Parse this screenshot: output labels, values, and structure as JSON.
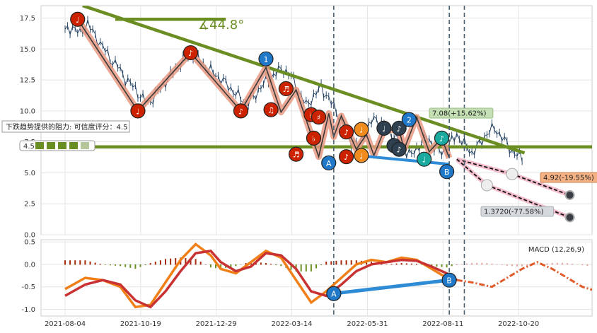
{
  "chart_data": [
    {
      "type": "line",
      "panel": "price",
      "x_labels": [
        "2021-08-04",
        "2021-10-19",
        "2021-12-29",
        "2022-03-14",
        "2022-05-31",
        "2022-08-11",
        "2022-10-20"
      ],
      "yticks": [
        "0.0",
        "2.5",
        "5.0",
        "7.5",
        "10.0",
        "12.5",
        "15.0",
        "17.5"
      ],
      "ylim": [
        0,
        18.5
      ],
      "grid": true,
      "price_series": [
        [
          0,
          16.4
        ],
        [
          3,
          16.8
        ],
        [
          6,
          16.2
        ],
        [
          9,
          17.1
        ],
        [
          12,
          16.0
        ],
        [
          15,
          15.2
        ],
        [
          18,
          14.2
        ],
        [
          21,
          13.6
        ],
        [
          24,
          12.6
        ],
        [
          27,
          12.0
        ],
        [
          30,
          11.2
        ],
        [
          33,
          10.6
        ],
        [
          36,
          11.3
        ],
        [
          39,
          12.1
        ],
        [
          42,
          12.9
        ],
        [
          45,
          13.6
        ],
        [
          48,
          14.3
        ],
        [
          51,
          14.6
        ],
        [
          54,
          14.0
        ],
        [
          57,
          13.4
        ],
        [
          60,
          12.9
        ],
        [
          63,
          12.4
        ],
        [
          66,
          11.8
        ],
        [
          69,
          11.2
        ],
        [
          72,
          10.6
        ],
        [
          75,
          11.0
        ],
        [
          78,
          12.0
        ],
        [
          81,
          12.5
        ],
        [
          84,
          13.1
        ],
        [
          87,
          13.4
        ],
        [
          90,
          12.8
        ],
        [
          93,
          11.6
        ],
        [
          96,
          10.4
        ],
        [
          99,
          11.2
        ],
        [
          102,
          11.9
        ],
        [
          105,
          11.0
        ],
        [
          108,
          10.0
        ],
        [
          111,
          8.8
        ],
        [
          114,
          7.6
        ],
        [
          117,
          7.2
        ],
        [
          120,
          8.4
        ],
        [
          123,
          9.4
        ],
        [
          126,
          9.0
        ],
        [
          129,
          8.4
        ],
        [
          132,
          7.8
        ],
        [
          135,
          6.9
        ],
        [
          138,
          6.4
        ],
        [
          141,
          7.2
        ],
        [
          144,
          7.9
        ],
        [
          147,
          7.1
        ],
        [
          150,
          6.6
        ],
        [
          153,
          7.3
        ],
        [
          156,
          8.1
        ],
        [
          159,
          7.3
        ],
        [
          162,
          6.6
        ],
        [
          165,
          7.3
        ],
        [
          168,
          8.2
        ],
        [
          171,
          8.6
        ],
        [
          174,
          7.9
        ],
        [
          177,
          7.0
        ],
        [
          180,
          6.4
        ],
        [
          183,
          6.1
        ]
      ],
      "trend_lines": [
        {
          "label": "∡44.8°",
          "points": [
            [
              7,
              18.5
            ],
            [
              183,
              6.6
            ]
          ],
          "color": "#6b8e23"
        },
        {
          "points": [
            [
              20,
              17.4
            ],
            [
              64,
              17.4
            ]
          ],
          "color": "#6b8e23"
        },
        {
          "points": [
            [
              -5,
              7.1
            ],
            [
              244,
              7.1
            ]
          ],
          "color": "#6b8e23"
        }
      ],
      "zigzag": [
        [
          5,
          17.4
        ],
        [
          29,
          10.0
        ],
        [
          50,
          14.7
        ],
        [
          70,
          10.0
        ],
        [
          80,
          13.5
        ],
        [
          86,
          9.9
        ],
        [
          92,
          11.7
        ],
        [
          101,
          6.3
        ],
        [
          105,
          9.8
        ],
        [
          107,
          7.9
        ],
        [
          110,
          9.6
        ],
        [
          116,
          6.9
        ],
        [
          120,
          8.1
        ],
        [
          123,
          6.4
        ],
        [
          127,
          8.4
        ],
        [
          133,
          8.5
        ],
        [
          135,
          6.9
        ],
        [
          140,
          9.5
        ],
        [
          145,
          6.7
        ],
        [
          150,
          7.8
        ],
        [
          153,
          6.2
        ]
      ],
      "support_line": [
        [
          116,
          6.4
        ],
        [
          153,
          5.7
        ]
      ],
      "projections": [
        {
          "label": "7.08(+15.62%)",
          "value": 7.08,
          "color": "#c5e0b4"
        },
        {
          "label": "4.92(-19.55%)",
          "value": 4.92,
          "points": [
            [
              156,
              6.1
            ],
            [
              178,
              4.9
            ],
            [
              201,
              3.2
            ]
          ],
          "color": "#f4a460"
        },
        {
          "label": "1.3720(-77.58%)",
          "value": 1.372,
          "points": [
            [
              156,
              6.1
            ],
            [
              168,
              4.0
            ],
            [
              201,
              1.4
            ]
          ],
          "color": "#c9cfd6"
        }
      ],
      "markers": [
        {
          "x": 5,
          "y": 17.4,
          "glyph": "♩",
          "color": "#cc2200"
        },
        {
          "x": 29,
          "y": 10.0,
          "glyph": "♩",
          "color": "#cc2200"
        },
        {
          "x": 50,
          "y": 14.7,
          "glyph": "♪",
          "color": "#cc2200"
        },
        {
          "x": 70,
          "y": 10.0,
          "glyph": "♪",
          "color": "#cc2200"
        },
        {
          "x": 80,
          "y": 14.2,
          "glyph": "1",
          "color": "#1f78c8"
        },
        {
          "x": 82,
          "y": 10.1,
          "glyph": "♫",
          "color": "#cc2200"
        },
        {
          "x": 88,
          "y": 11.8,
          "glyph": "♬",
          "color": "#cc2200"
        },
        {
          "x": 98,
          "y": 9.7,
          "glyph": "♭",
          "color": "#cc2200"
        },
        {
          "x": 101,
          "y": 9.5,
          "glyph": "♯",
          "color": "#cc2200"
        },
        {
          "x": 92,
          "y": 6.5,
          "glyph": "♬",
          "color": "#cc2200"
        },
        {
          "x": 99,
          "y": 7.8,
          "glyph": "♭",
          "color": "#cc2200"
        },
        {
          "x": 112,
          "y": 8.3,
          "glyph": "♪",
          "color": "#cc2200"
        },
        {
          "x": 118,
          "y": 8.5,
          "glyph": "♩",
          "color": "#f08c1e"
        },
        {
          "x": 112,
          "y": 6.3,
          "glyph": "♪",
          "color": "#cc2200"
        },
        {
          "x": 118,
          "y": 6.4,
          "glyph": "♩",
          "color": "#f08c1e"
        },
        {
          "x": 127,
          "y": 8.6,
          "glyph": "♩",
          "color": "#2f4050"
        },
        {
          "x": 133,
          "y": 8.6,
          "glyph": "♪",
          "color": "#2f4050"
        },
        {
          "x": 131,
          "y": 7.2,
          "glyph": "♩",
          "color": "#2f4050"
        },
        {
          "x": 133,
          "y": 6.9,
          "glyph": "♪",
          "color": "#2f4050"
        },
        {
          "x": 137,
          "y": 9.3,
          "glyph": "2",
          "color": "#1f78c8"
        },
        {
          "x": 143,
          "y": 6.1,
          "glyph": "♩",
          "color": "#1aaa9f"
        },
        {
          "x": 150,
          "y": 7.8,
          "glyph": "♪",
          "color": "#1aaa9f"
        },
        {
          "x": 105,
          "y": 5.8,
          "glyph": "A",
          "color": "#1f78c8"
        },
        {
          "x": 152,
          "y": 5.1,
          "glyph": "B",
          "color": "#1f78c8"
        }
      ],
      "dashed_vlines": [
        107,
        153,
        159
      ],
      "annotation_box": "下跌趋势提供的阻力: 可信度评分：4.5",
      "rating_label": "4.5"
    },
    {
      "type": "bar",
      "panel": "macd",
      "title": "MACD (12,26,9)",
      "yticks": [
        "0.5",
        "0.0",
        "-0.5",
        "-1.0"
      ],
      "ylim": [
        -1.15,
        0.55
      ],
      "grid": true,
      "histogram_colors": {
        "positive": "#a52a0a",
        "negative": "#6b8e23",
        "projected": "#e0a8a0"
      },
      "macd_series": [
        [
          0,
          -0.55
        ],
        [
          8,
          -0.3
        ],
        [
          15,
          -0.35
        ],
        [
          22,
          -0.5
        ],
        [
          28,
          -0.95
        ],
        [
          34,
          -0.9
        ],
        [
          40,
          -0.4
        ],
        [
          46,
          0.1
        ],
        [
          52,
          0.45
        ],
        [
          58,
          0.2
        ],
        [
          62,
          -0.1
        ],
        [
          68,
          -0.2
        ],
        [
          74,
          0.05
        ],
        [
          80,
          0.3
        ],
        [
          86,
          0.15
        ],
        [
          92,
          -0.35
        ],
        [
          98,
          -0.85
        ],
        [
          104,
          -0.6
        ],
        [
          110,
          -0.3
        ],
        [
          116,
          0.0
        ],
        [
          122,
          0.1
        ],
        [
          128,
          0.05
        ],
        [
          134,
          0.15
        ],
        [
          140,
          0.1
        ],
        [
          146,
          -0.1
        ],
        [
          152,
          -0.3
        ],
        [
          156,
          -0.35
        ]
      ],
      "signal_series": [
        [
          0,
          -0.7
        ],
        [
          8,
          -0.45
        ],
        [
          15,
          -0.35
        ],
        [
          22,
          -0.45
        ],
        [
          28,
          -0.8
        ],
        [
          34,
          -0.95
        ],
        [
          40,
          -0.6
        ],
        [
          46,
          -0.15
        ],
        [
          52,
          0.25
        ],
        [
          58,
          0.3
        ],
        [
          62,
          0.05
        ],
        [
          68,
          -0.15
        ],
        [
          74,
          -0.05
        ],
        [
          80,
          0.25
        ],
        [
          86,
          0.2
        ],
        [
          92,
          -0.1
        ],
        [
          98,
          -0.6
        ],
        [
          104,
          -0.7
        ],
        [
          110,
          -0.45
        ],
        [
          116,
          -0.15
        ],
        [
          122,
          0.0
        ],
        [
          128,
          0.05
        ],
        [
          134,
          0.1
        ],
        [
          140,
          0.08
        ],
        [
          146,
          -0.05
        ],
        [
          152,
          -0.2
        ],
        [
          156,
          -0.35
        ]
      ],
      "projected_series": [
        [
          156,
          -0.35
        ],
        [
          162,
          -0.4
        ],
        [
          170,
          -0.5
        ],
        [
          176,
          -0.3
        ],
        [
          182,
          -0.1
        ],
        [
          188,
          0.05
        ],
        [
          194,
          -0.1
        ],
        [
          200,
          -0.3
        ],
        [
          206,
          -0.5
        ],
        [
          212,
          -0.6
        ]
      ],
      "markers": [
        {
          "x": 107,
          "y": -0.65,
          "glyph": "A",
          "color": "#1f78c8"
        },
        {
          "x": 153,
          "y": -0.35,
          "glyph": "B",
          "color": "#1f78c8"
        }
      ]
    }
  ]
}
